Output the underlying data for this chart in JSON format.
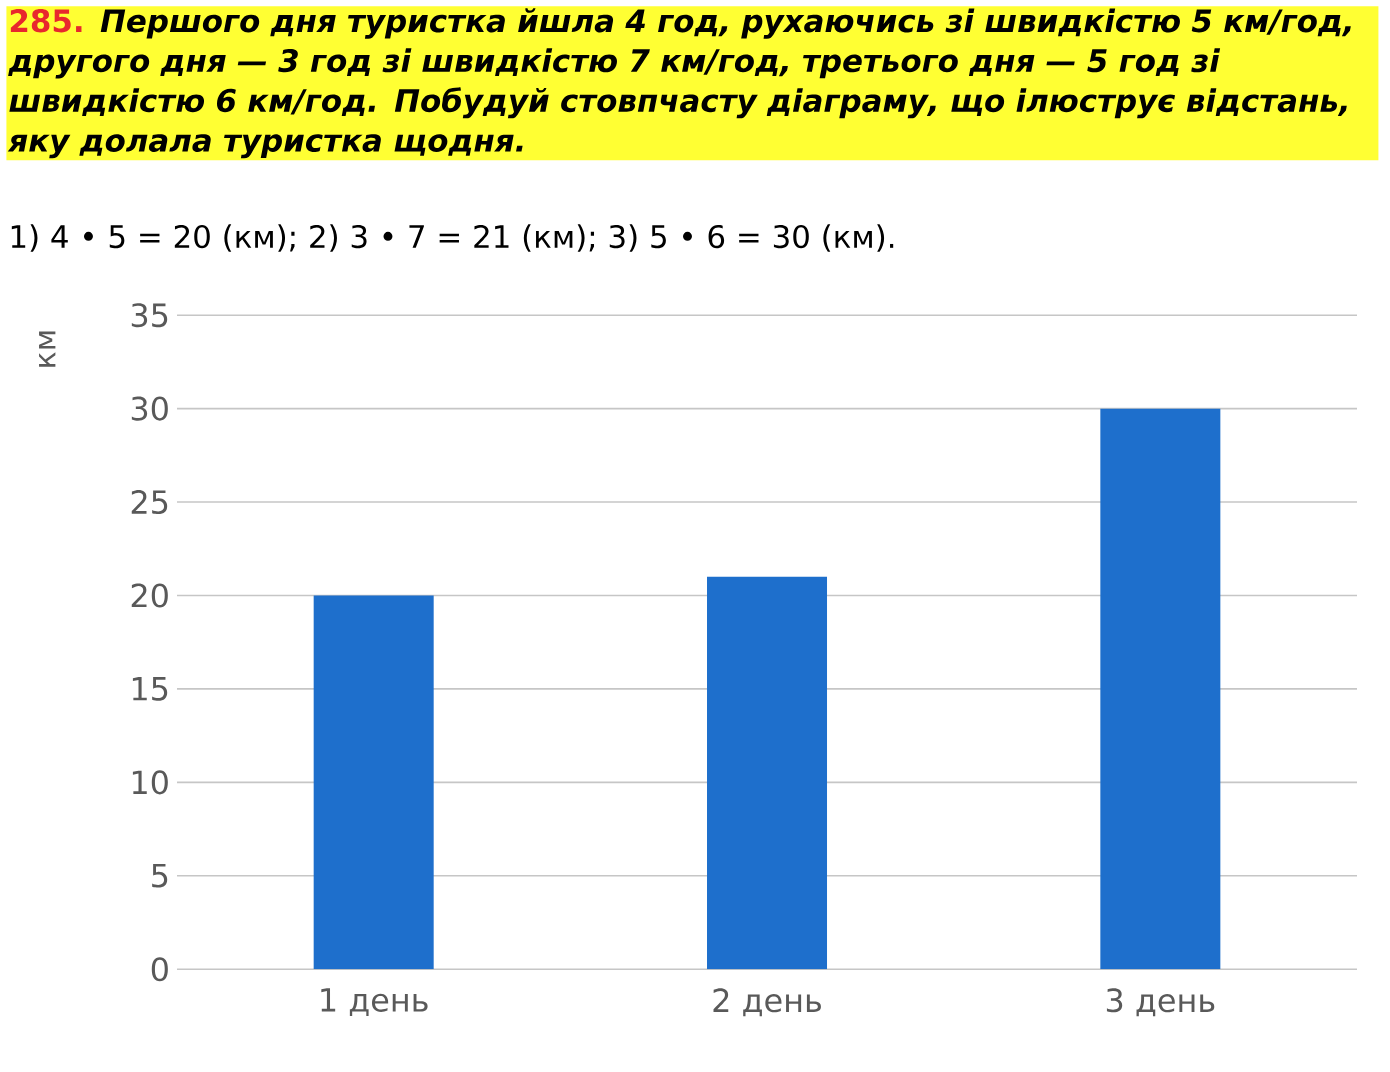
{
  "chart_data": {
    "type": "bar",
    "title": "285.",
    "subtitle": "Першого дня туристка йшла 4 год, рухаючись зі швидкістю 5 км/год, другого дня — 3 год зі швидкістю 7 км/год, третього дня — 5 год зі швидкістю 6 км/год. Побудуй стовпчасту діаграму, що ілюструє відстань, яку долала туристка щодня.",
    "annotations": [
      "1) 4 • 5 = 20 (км); 2) 3 • 7 = 21 (км); 3) 5 • 6 = 30 (км)."
    ],
    "ylabel": "км",
    "categories": [
      "1 день",
      "2 день",
      "3 день"
    ],
    "values": [
      20,
      21,
      30
    ],
    "color": "#1e6fcc",
    "ylim": [
      0,
      35
    ],
    "yticks": [
      0,
      5,
      10,
      15,
      20,
      25,
      30,
      35
    ],
    "grid": "y"
  }
}
